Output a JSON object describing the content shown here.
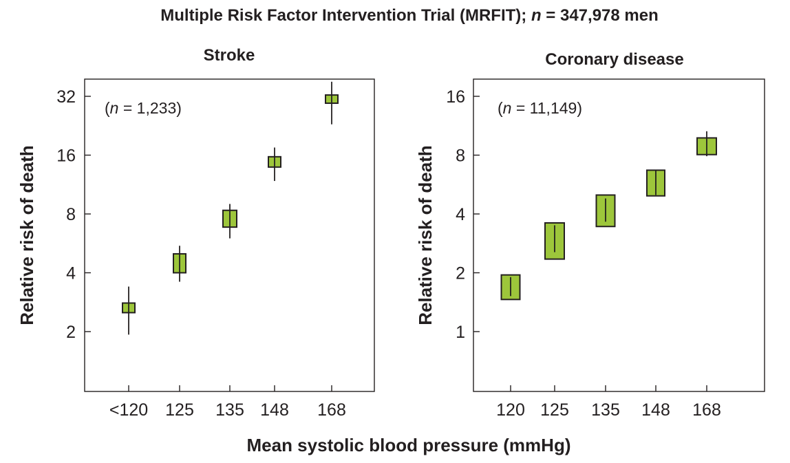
{
  "figure": {
    "title_prefix": "Multiple Risk Factor Intervention Trial (MRFIT); ",
    "title_n": "n",
    "title_suffix": " = 347,978 men",
    "xlabel": "Mean systolic blood pressure (mmHg)",
    "box_color": "#9dc63b",
    "line_color": "#231f20"
  },
  "chart_data": [
    {
      "type": "scatter",
      "title": "Stroke",
      "annotation": "(n = 1,233)",
      "annotation_n": "n",
      "annotation_rest": " = 1,233)",
      "ylabel": "Relative risk of death",
      "yscale": "log2",
      "ylim": [
        1,
        40
      ],
      "yticks": [
        2,
        4,
        8,
        16,
        32
      ],
      "categories": [
        "<120",
        "125",
        "135",
        "148",
        "168"
      ],
      "values": [
        2.65,
        4.5,
        7.6,
        14.8,
        31
      ],
      "ci_low": [
        1.93,
        3.6,
        6.0,
        11.8,
        23
      ],
      "ci_high": [
        3.4,
        5.5,
        9.0,
        17.5,
        38
      ],
      "box_low": [
        2.5,
        4.0,
        6.85,
        13.9,
        29.5
      ],
      "box_high": [
        2.8,
        5.0,
        8.35,
        15.7,
        32.5
      ]
    },
    {
      "type": "scatter",
      "title": "Coronary disease",
      "annotation": "(n = 11,149)",
      "annotation_n": "n",
      "annotation_rest": " = 11,149)",
      "ylabel": "Relative risk of death",
      "yscale": "log2",
      "ylim": [
        0.5,
        20
      ],
      "yticks": [
        1,
        2,
        4,
        8,
        16
      ],
      "categories": [
        "120",
        "125",
        "135",
        "148",
        "168"
      ],
      "values": [
        1.7,
        3.0,
        4.2,
        5.8,
        9.1
      ],
      "ci_low": [
        1.52,
        2.55,
        3.65,
        5.0,
        7.9
      ],
      "ci_high": [
        1.9,
        3.5,
        4.8,
        6.7,
        10.6
      ],
      "box_low": [
        1.46,
        2.35,
        3.45,
        4.95,
        8.05
      ],
      "box_high": [
        1.95,
        3.6,
        5.0,
        6.7,
        9.8
      ]
    }
  ]
}
